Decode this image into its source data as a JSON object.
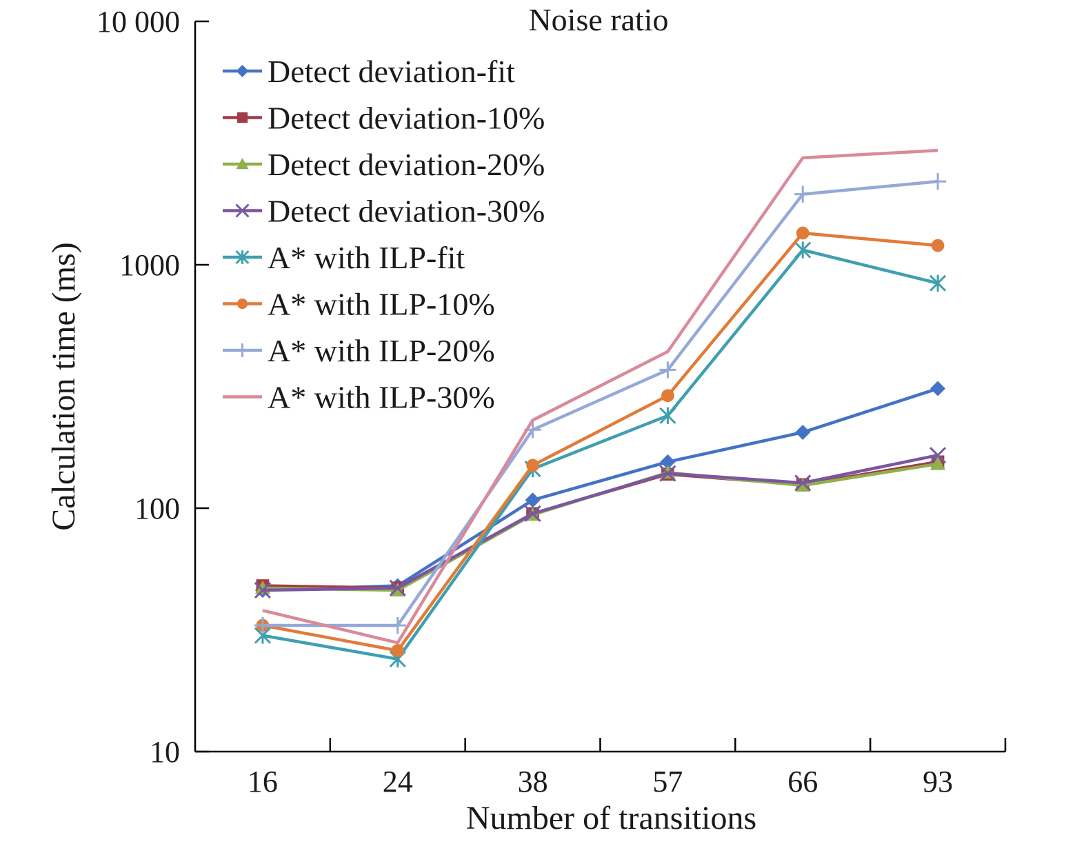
{
  "chart_data": {
    "type": "line",
    "title": "",
    "xlabel": "Number of transitions",
    "ylabel": "Calculation time (ms)",
    "yscale": "log",
    "ylim": [
      10,
      10000
    ],
    "y_tick_labels": [
      "10",
      "100",
      "1000",
      "10 000"
    ],
    "y_tick_values": [
      10,
      100,
      1000,
      10000
    ],
    "categories": [
      "16",
      "24",
      "38",
      "57",
      "66",
      "93"
    ],
    "legend_title": "Noise ratio",
    "legend_position": "top-left",
    "grid": false,
    "series": [
      {
        "name": "Detect deviation-fit",
        "color": "#4472C4",
        "marker": "diamond",
        "values": [
          46,
          48,
          108,
          155,
          205,
          310
        ]
      },
      {
        "name": "Detect deviation-10%",
        "color": "#A23B4A",
        "marker": "square",
        "values": [
          48,
          47,
          95,
          138,
          125,
          155
        ]
      },
      {
        "name": "Detect deviation-20%",
        "color": "#8FB04A",
        "marker": "triangle",
        "values": [
          47,
          46,
          94,
          140,
          124,
          152
        ]
      },
      {
        "name": "Detect deviation-30%",
        "color": "#7A56A0",
        "marker": "x",
        "values": [
          46,
          47,
          95,
          139,
          127,
          165
        ]
      },
      {
        "name": "A* with ILP-fit",
        "color": "#3F9FAF",
        "marker": "asterisk",
        "values": [
          30,
          24,
          145,
          240,
          1150,
          840
        ]
      },
      {
        "name": "A* with ILP-10%",
        "color": "#E07B39",
        "marker": "circle",
        "values": [
          33,
          26,
          150,
          290,
          1350,
          1200
        ]
      },
      {
        "name": "A* with ILP-20%",
        "color": "#95A9D8",
        "marker": "plus",
        "values": [
          33,
          33,
          210,
          370,
          1950,
          2200
        ]
      },
      {
        "name": "A* with ILP-30%",
        "color": "#D98A9A",
        "marker": "none",
        "values": [
          38,
          28,
          230,
          440,
          2750,
          2950
        ]
      }
    ]
  }
}
